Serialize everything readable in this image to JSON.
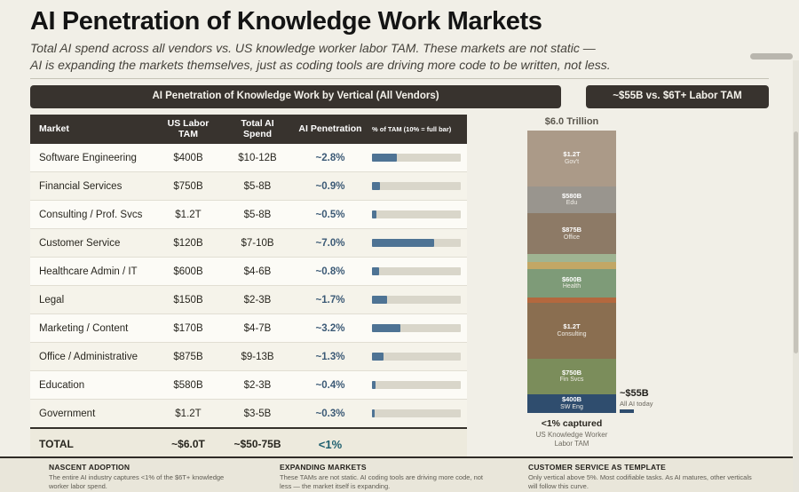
{
  "header": {
    "title": "AI Penetration of Knowledge Work Markets",
    "subtitle_line1": "Total AI spend across all vendors vs. US knowledge worker labor TAM. These markets are not static —",
    "subtitle_line2": "AI is expanding the markets themselves, just as coding tools are driving more code to be written, not less."
  },
  "chart_data": [
    {
      "type": "table",
      "title": "AI Penetration of Knowledge Work by Vertical (All Vendors)",
      "columns": [
        "Market",
        "US Labor TAM",
        "Total AI Spend",
        "AI Penetration",
        "% of TAM (10% = full bar)"
      ],
      "bar_full_scale_pct": 10,
      "bar_fill_color": "#4e7394",
      "rows": [
        {
          "market": "Software Engineering",
          "tam": "$400B",
          "spend": "$10-12B",
          "penetration": "~2.8%",
          "pct": 2.8
        },
        {
          "market": "Financial Services",
          "tam": "$750B",
          "spend": "$5-8B",
          "penetration": "~0.9%",
          "pct": 0.9
        },
        {
          "market": "Consulting / Prof. Svcs",
          "tam": "$1.2T",
          "spend": "$5-8B",
          "penetration": "~0.5%",
          "pct": 0.5
        },
        {
          "market": "Customer Service",
          "tam": "$120B",
          "spend": "$7-10B",
          "penetration": "~7.0%",
          "pct": 7.0
        },
        {
          "market": "Healthcare Admin / IT",
          "tam": "$600B",
          "spend": "$4-6B",
          "penetration": "~0.8%",
          "pct": 0.8
        },
        {
          "market": "Legal",
          "tam": "$150B",
          "spend": "$2-3B",
          "penetration": "~1.7%",
          "pct": 1.7
        },
        {
          "market": "Marketing / Content",
          "tam": "$170B",
          "spend": "$4-7B",
          "penetration": "~3.2%",
          "pct": 3.2
        },
        {
          "market": "Office / Administrative",
          "tam": "$875B",
          "spend": "$9-13B",
          "penetration": "~1.3%",
          "pct": 1.3
        },
        {
          "market": "Education",
          "tam": "$580B",
          "spend": "$2-3B",
          "penetration": "~0.4%",
          "pct": 0.4
        },
        {
          "market": "Government",
          "tam": "$1.2T",
          "spend": "$3-5B",
          "penetration": "~0.3%",
          "pct": 0.3
        }
      ],
      "total": {
        "market": "TOTAL",
        "tam": "~$6.0T",
        "spend": "~$50-75B",
        "penetration": "<1%"
      }
    },
    {
      "type": "bar",
      "subtype": "stacked-single-column",
      "title": "~$55B vs. $6T+ Labor TAM",
      "total_label": "$6.0 Trillion",
      "unit": "USD billions",
      "total_billions": 6045,
      "segments": [
        {
          "id": "govt",
          "name": "Gov't",
          "value_billions": 1200,
          "value_label": "$1.2T",
          "color": "#ab9a88",
          "show_label": true
        },
        {
          "id": "edu",
          "name": "Edu",
          "value_billions": 580,
          "value_label": "$580B",
          "color": "#99958e",
          "show_label": true
        },
        {
          "id": "office",
          "name": "Office",
          "value_billions": 875,
          "value_label": "$875B",
          "color": "#8d7a66",
          "show_label": true
        },
        {
          "id": "marketing",
          "name": "Marketing",
          "value_billions": 170,
          "value_label": "$170B",
          "color": "#9fb492",
          "show_label": false
        },
        {
          "id": "legal",
          "name": "Legal",
          "value_billions": 150,
          "value_label": "$150B",
          "color": "#c2a765",
          "show_label": false
        },
        {
          "id": "health",
          "name": "Health",
          "value_billions": 600,
          "value_label": "$600B",
          "color": "#7e9b78",
          "show_label": true
        },
        {
          "id": "customer-service",
          "name": "Cust Svc",
          "value_billions": 120,
          "value_label": "$120B",
          "color": "#b4683e",
          "show_label": false
        },
        {
          "id": "consulting",
          "name": "Consulting",
          "value_billions": 1200,
          "value_label": "$1.2T",
          "color": "#8a6e50",
          "show_label": true
        },
        {
          "id": "fin-svcs",
          "name": "Fin Svcs",
          "value_billions": 750,
          "value_label": "$750B",
          "color": "#7b8d5b",
          "show_label": true
        },
        {
          "id": "sw-eng",
          "name": "SW Eng",
          "value_billions": 400,
          "value_label": "$400B",
          "color": "#2f4d6e",
          "show_label": true
        }
      ],
      "ai_bar": {
        "label": "~$55B",
        "sublabel": "All AI today",
        "value_billions": 55,
        "color": "#2f4d6e"
      },
      "caption_bold": "<1% captured",
      "caption": "US Knowledge Worker Labor TAM"
    }
  ],
  "footer": {
    "items": [
      {
        "title": "NASCENT ADOPTION",
        "text": "The entire AI industry captures <1% of the $6T+ knowledge worker labor spend."
      },
      {
        "title": "EXPANDING MARKETS",
        "text": "These TAMs are not static. AI coding tools are driving more code, not less — the market itself is expanding."
      },
      {
        "title": "CUSTOMER SERVICE AS TEMPLATE",
        "text": "Only vertical above 5%. Most codifiable tasks. As AI matures, other verticals will follow this curve."
      }
    ]
  }
}
